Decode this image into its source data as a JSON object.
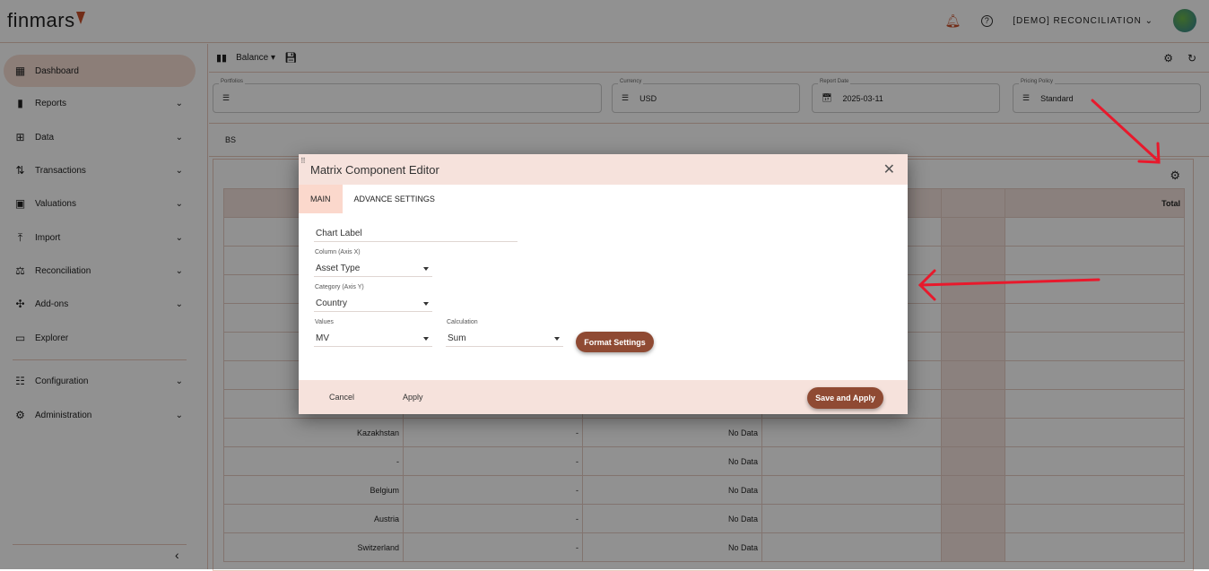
{
  "header": {
    "logo": "finmars",
    "workspace": "[DEMO] RECONCILIATION",
    "icons": [
      "bell-icon",
      "help-icon",
      "chevron-down-icon"
    ]
  },
  "sidebar": {
    "items": [
      {
        "label": "Dashboard",
        "icon": "dashboard-icon",
        "active": true
      },
      {
        "label": "Reports",
        "icon": "bar-chart-icon"
      },
      {
        "label": "Data",
        "icon": "data-tree-icon"
      },
      {
        "label": "Transactions",
        "icon": "transactions-icon"
      },
      {
        "label": "Valuations",
        "icon": "wallet-icon"
      },
      {
        "label": "Import",
        "icon": "upload-icon"
      },
      {
        "label": "Reconciliation",
        "icon": "scale-icon"
      },
      {
        "label": "Add-ons",
        "icon": "puzzle-icon"
      },
      {
        "label": "Explorer",
        "icon": "folder-icon"
      },
      {
        "label": "Configuration",
        "icon": "sliders-icon"
      },
      {
        "label": "Administration",
        "icon": "admin-gear-icon"
      }
    ],
    "collapse": "‹"
  },
  "toolbar": {
    "layout": "Balance"
  },
  "filters": [
    {
      "label": "Portfolios",
      "value": ""
    },
    {
      "label": "Currency",
      "value": "USD"
    },
    {
      "label": "Report Date",
      "value": "2025-03-11"
    },
    {
      "label": "Pricing Policy",
      "value": "Standard"
    }
  ],
  "tabs": [
    "BS"
  ],
  "matrix": {
    "total_header": "Total",
    "rows": [
      {
        "label": "Kazakhstan",
        "c2": "-",
        "c3": "No Data"
      },
      {
        "label": "-",
        "c2": "-",
        "c3": "No Data"
      },
      {
        "label": "Belgium",
        "c2": "-",
        "c3": "No Data"
      },
      {
        "label": "Austria",
        "c2": "-",
        "c3": "No Data"
      },
      {
        "label": "Switzerland",
        "c2": "-",
        "c3": "No Data"
      }
    ]
  },
  "modal": {
    "title": "Matrix Component Editor",
    "tabs": [
      "MAIN",
      "ADVANCE SETTINGS"
    ],
    "chart_label": "Chart Label",
    "column": {
      "label": "Column (Axis X)",
      "value": "Asset Type"
    },
    "category": {
      "label": "Category (Axis Y)",
      "value": "Country"
    },
    "values": {
      "label": "Values",
      "value": "MV"
    },
    "calculation": {
      "label": "Calculation",
      "value": "Sum"
    },
    "format_settings": "Format Settings",
    "cancel": "Cancel",
    "apply": "Apply",
    "save_apply": "Save and Apply"
  },
  "colors": {
    "accent": "#8f4a33",
    "annotation": "#e8192c"
  }
}
